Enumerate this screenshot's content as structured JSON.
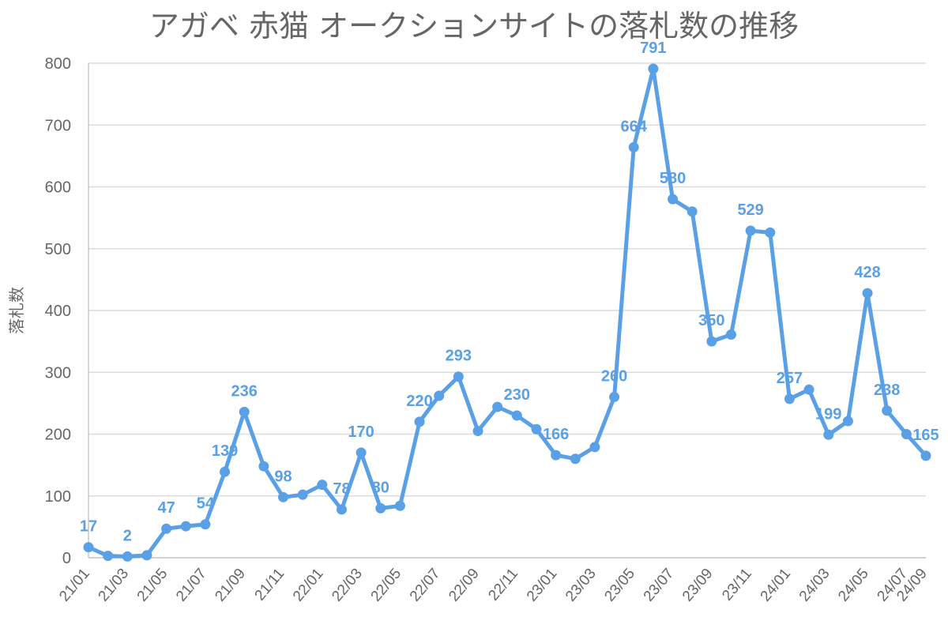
{
  "chart_data": {
    "type": "line",
    "title": "アガベ 赤猫 オークションサイトの落札数の推移",
    "xlabel": "",
    "ylabel": "落札数",
    "ylim": [
      0,
      800
    ],
    "yticks": [
      0,
      100,
      200,
      300,
      400,
      500,
      600,
      700,
      800
    ],
    "grid": true,
    "legend": "none",
    "color": "#5aa0e6",
    "x": [
      "21/01",
      "21/02",
      "21/03",
      "21/04",
      "21/05",
      "21/06",
      "21/07",
      "21/08",
      "21/09",
      "21/10",
      "21/11",
      "21/12",
      "22/01",
      "22/02",
      "22/03",
      "22/04",
      "22/05",
      "22/06",
      "22/07",
      "22/08",
      "22/09",
      "22/10",
      "22/11",
      "22/12",
      "23/01",
      "23/02",
      "23/03",
      "23/04",
      "23/05",
      "23/06",
      "23/07",
      "23/08",
      "23/09",
      "23/10",
      "23/11",
      "23/12",
      "24/01",
      "24/02",
      "24/03",
      "24/04",
      "24/05",
      "24/06",
      "24/07",
      "24/08"
    ],
    "xtick_labels": [
      "21/01",
      "21/03",
      "21/05",
      "21/07",
      "21/09",
      "21/11",
      "22/01",
      "22/03",
      "22/05",
      "22/07",
      "22/09",
      "22/11",
      "23/01",
      "23/03",
      "23/05",
      "23/07",
      "23/09",
      "23/11",
      "24/01",
      "24/03",
      "24/05",
      "24/07",
      "24/09"
    ],
    "values": [
      17,
      3,
      2,
      4,
      47,
      51,
      54,
      139,
      236,
      148,
      98,
      102,
      118,
      78,
      170,
      80,
      84,
      220,
      262,
      293,
      205,
      244,
      230,
      208,
      166,
      160,
      179,
      260,
      664,
      791,
      580,
      560,
      350,
      361,
      529,
      526,
      257,
      272,
      199,
      221,
      428,
      238,
      200,
      165
    ],
    "data_labels": [
      {
        "index": 0,
        "text": "17"
      },
      {
        "index": 2,
        "text": "2"
      },
      {
        "index": 4,
        "text": "47"
      },
      {
        "index": 6,
        "text": "54"
      },
      {
        "index": 7,
        "text": "139"
      },
      {
        "index": 8,
        "text": "236"
      },
      {
        "index": 10,
        "text": "98"
      },
      {
        "index": 13,
        "text": "78"
      },
      {
        "index": 14,
        "text": "170"
      },
      {
        "index": 15,
        "text": "80"
      },
      {
        "index": 17,
        "text": "220"
      },
      {
        "index": 19,
        "text": "293"
      },
      {
        "index": 22,
        "text": "230"
      },
      {
        "index": 24,
        "text": "166"
      },
      {
        "index": 27,
        "text": "260"
      },
      {
        "index": 28,
        "text": "664"
      },
      {
        "index": 29,
        "text": "791"
      },
      {
        "index": 30,
        "text": "580"
      },
      {
        "index": 32,
        "text": "350"
      },
      {
        "index": 34,
        "text": "529"
      },
      {
        "index": 36,
        "text": "257"
      },
      {
        "index": 38,
        "text": "199"
      },
      {
        "index": 40,
        "text": "428"
      },
      {
        "index": 41,
        "text": "238"
      },
      {
        "index": 43,
        "text": "165"
      }
    ]
  }
}
